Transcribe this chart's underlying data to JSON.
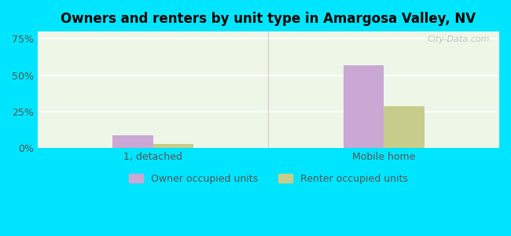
{
  "title": "Owners and renters by unit type in Amargosa Valley, NV",
  "categories": [
    "1, detached",
    "Mobile home"
  ],
  "owner_values": [
    9,
    57
  ],
  "renter_values": [
    3,
    29
  ],
  "owner_color": "#c9a8d4",
  "renter_color": "#c8cc8a",
  "owner_label": "Owner occupied units",
  "renter_label": "Renter occupied units",
  "yticks": [
    0,
    25,
    50,
    75
  ],
  "ytick_labels": [
    "0%",
    "25%",
    "50%",
    "75%"
  ],
  "ylim": [
    0,
    80
  ],
  "background_outer": "#00e5ff",
  "background_inner_top": "#e8f5e9",
  "background_inner_bottom": "#f0f7e8",
  "watermark": "City-Data.com",
  "bar_width": 0.35,
  "group_positions": [
    1,
    3
  ]
}
